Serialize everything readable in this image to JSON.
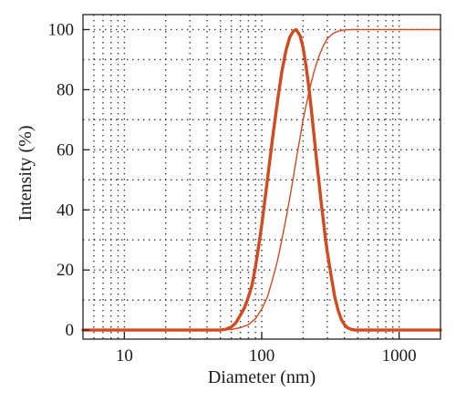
{
  "chart_data": {
    "type": "line",
    "xlabel": "Diameter (nm)",
    "ylabel": "Intensity (%)",
    "x_scale": "log",
    "xlim": [
      5,
      2000
    ],
    "ylim": [
      -3,
      105
    ],
    "x_ticks": [
      {
        "value": 10,
        "label": "10"
      },
      {
        "value": 100,
        "label": "100"
      },
      {
        "value": 1000,
        "label": "1000"
      }
    ],
    "y_ticks": [
      {
        "value": 0,
        "label": "0"
      },
      {
        "value": 20,
        "label": "20"
      },
      {
        "value": 40,
        "label": "40"
      },
      {
        "value": 60,
        "label": "60"
      },
      {
        "value": 80,
        "label": "80"
      },
      {
        "value": 100,
        "label": "100"
      }
    ],
    "grid": "dotted",
    "series": [
      {
        "style": "thick",
        "color": "#d24a1e",
        "points": [
          [
            5,
            0
          ],
          [
            50,
            0
          ],
          [
            55,
            0.3
          ],
          [
            60,
            1
          ],
          [
            65,
            2.5
          ],
          [
            70,
            5
          ],
          [
            75,
            7.5
          ],
          [
            80,
            11
          ],
          [
            85,
            15
          ],
          [
            90,
            21
          ],
          [
            95,
            28
          ],
          [
            100,
            35
          ],
          [
            110,
            50
          ],
          [
            120,
            64
          ],
          [
            130,
            76
          ],
          [
            140,
            86
          ],
          [
            150,
            93
          ],
          [
            160,
            97.5
          ],
          [
            170,
            99.5
          ],
          [
            178,
            100
          ],
          [
            190,
            98
          ],
          [
            200,
            94
          ],
          [
            210,
            88
          ],
          [
            220,
            81
          ],
          [
            230,
            73
          ],
          [
            240,
            65
          ],
          [
            250,
            57
          ],
          [
            260,
            50
          ],
          [
            270,
            43
          ],
          [
            280,
            37
          ],
          [
            290,
            31
          ],
          [
            300,
            26
          ],
          [
            320,
            18
          ],
          [
            340,
            11
          ],
          [
            360,
            6.5
          ],
          [
            380,
            3.5
          ],
          [
            400,
            1.8
          ],
          [
            420,
            0.8
          ],
          [
            450,
            0.2
          ],
          [
            480,
            0
          ],
          [
            2000,
            0
          ]
        ]
      },
      {
        "style": "thin",
        "color": "#d24a1e",
        "points": [
          [
            5,
            0
          ],
          [
            50,
            0
          ],
          [
            60,
            0.2
          ],
          [
            70,
            0.8
          ],
          [
            80,
            1.8
          ],
          [
            90,
            3.8
          ],
          [
            100,
            7
          ],
          [
            110,
            11
          ],
          [
            120,
            17
          ],
          [
            130,
            23
          ],
          [
            140,
            30
          ],
          [
            150,
            37
          ],
          [
            160,
            44
          ],
          [
            170,
            51
          ],
          [
            180,
            58
          ],
          [
            190,
            64
          ],
          [
            200,
            70
          ],
          [
            220,
            79
          ],
          [
            240,
            86
          ],
          [
            260,
            91
          ],
          [
            280,
            94.5
          ],
          [
            300,
            97
          ],
          [
            330,
            98.7
          ],
          [
            360,
            99.5
          ],
          [
            400,
            99.9
          ],
          [
            450,
            100
          ],
          [
            2000,
            100
          ]
        ]
      }
    ]
  }
}
